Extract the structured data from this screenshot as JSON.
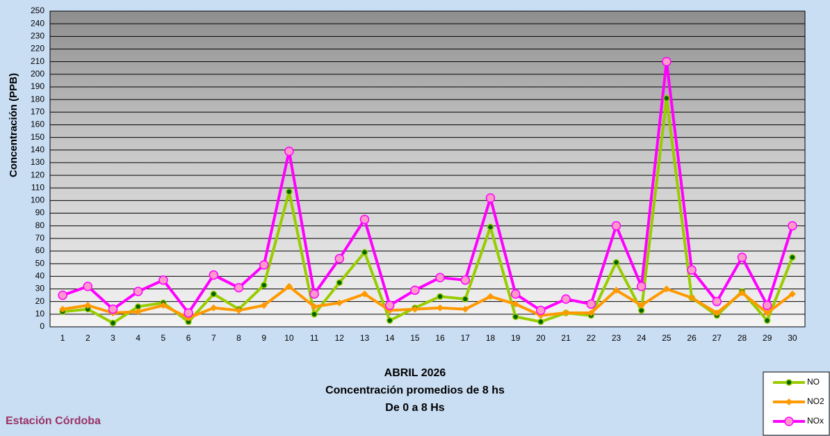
{
  "chart_data": {
    "type": "line",
    "y_label": "Concentración  (PPB)",
    "title": "ABRIL 2026",
    "subtitle_lines": [
      "Concentración promedios de 8 hs",
      "De 0 a 8 Hs"
    ],
    "station": "Estación Córdoba",
    "categories": [
      "1",
      "2",
      "3",
      "4",
      "5",
      "6",
      "7",
      "8",
      "9",
      "10",
      "11",
      "12",
      "13",
      "14",
      "15",
      "16",
      "17",
      "18",
      "19",
      "20",
      "21",
      "22",
      "23",
      "24",
      "25",
      "26",
      "27",
      "28",
      "29",
      "30"
    ],
    "series": [
      {
        "name": "NO",
        "color": "#99cc00",
        "marker_color": "#006600",
        "values": [
          12,
          14,
          3,
          16,
          19,
          4,
          26,
          14,
          33,
          107,
          10,
          35,
          59,
          5,
          15,
          24,
          22,
          79,
          8,
          4,
          11,
          9,
          51,
          13,
          181,
          23,
          9,
          28,
          5,
          55
        ]
      },
      {
        "name": "NO2",
        "color": "#ff9900",
        "marker_color": "#ff9900",
        "values": [
          14,
          17,
          11,
          12,
          17,
          7,
          15,
          13,
          17,
          32,
          16,
          19,
          26,
          13,
          14,
          15,
          14,
          24,
          18,
          9,
          11,
          11,
          29,
          17,
          30,
          23,
          11,
          27,
          11,
          26
        ]
      },
      {
        "name": "NOx",
        "color": "#ff00ff",
        "marker_color": "#ff99cc",
        "values": [
          25,
          32,
          14,
          28,
          37,
          11,
          41,
          31,
          49,
          139,
          26,
          54,
          85,
          17,
          29,
          39,
          37,
          102,
          26,
          13,
          22,
          18,
          80,
          32,
          210,
          45,
          20,
          55,
          17,
          80
        ]
      }
    ],
    "ylim": [
      0,
      250
    ],
    "yticks": [
      0,
      10,
      20,
      30,
      40,
      50,
      60,
      70,
      80,
      90,
      100,
      110,
      120,
      130,
      140,
      150,
      160,
      170,
      180,
      190,
      200,
      210,
      220,
      230,
      240,
      250
    ],
    "grid": true
  }
}
